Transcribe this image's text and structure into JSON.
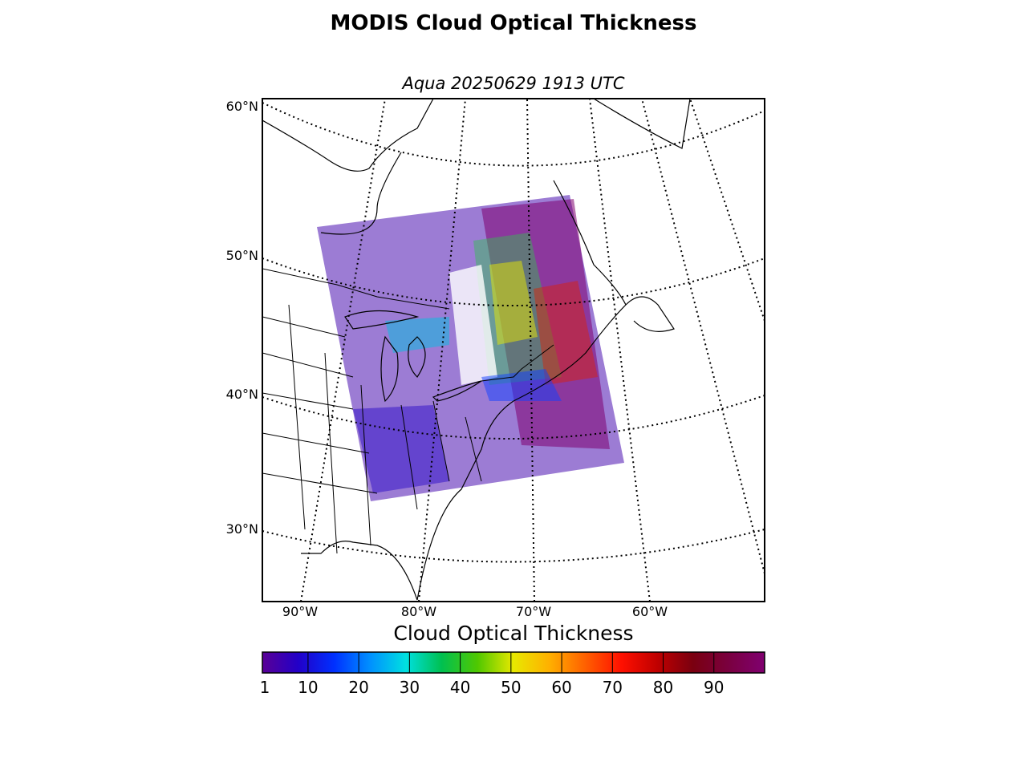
{
  "title": "MODIS Cloud Optical Thickness",
  "subtitle": "Aqua 20250629 1913 UTC",
  "lat_labels": [
    "60°N",
    "50°N",
    "40°N",
    "30°N"
  ],
  "lon_labels": [
    "90°W",
    "80°W",
    "70°W",
    "60°W"
  ],
  "colorbar": {
    "title": "Cloud Optical Thickness",
    "ticks": [
      "1",
      "10",
      "20",
      "30",
      "40",
      "50",
      "60",
      "70",
      "80",
      "90"
    ],
    "range": [
      1,
      100
    ],
    "colormap": [
      "#5a0096",
      "#2200c8",
      "#0030ff",
      "#0090ff",
      "#00e0e0",
      "#00c050",
      "#50c800",
      "#e8e800",
      "#ffb000",
      "#ff6000",
      "#ff1000",
      "#c00000",
      "#7a0010",
      "#7a0040",
      "#800070"
    ]
  },
  "map": {
    "projection": "conic",
    "extent": {
      "lon": [
        -93,
        -48
      ],
      "lat": [
        25,
        61
      ]
    },
    "meridians": [
      -90,
      -80,
      -70,
      -60
    ],
    "parallels": [
      30,
      40,
      50,
      60
    ],
    "coastline_color": "#000000",
    "graticule_style": "dotted",
    "land_color": "#ffffff"
  }
}
